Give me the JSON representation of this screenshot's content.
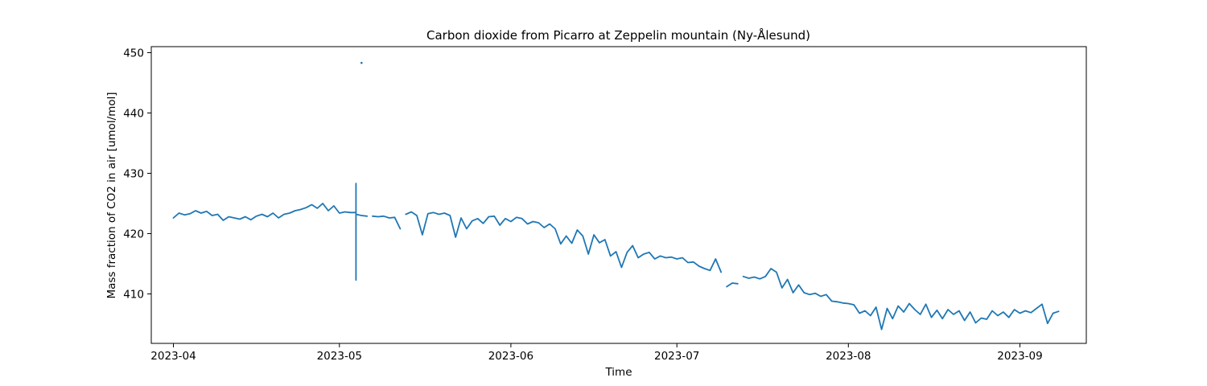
{
  "chart_data": {
    "type": "line",
    "title": "Carbon dioxide from Picarro at Zeppelin mountain (Ny-Ålesund)",
    "xlabel": "Time",
    "ylabel": "Mass fraction of CO2 in air [umol/mol]",
    "xlim": [
      "2023-03-28",
      "2023-09-13"
    ],
    "ylim": [
      401.8,
      451.0
    ],
    "xticks": [
      "2023-04-01",
      "2023-05-01",
      "2023-06-01",
      "2023-07-01",
      "2023-08-01",
      "2023-09-01"
    ],
    "xtick_labels": [
      "2023-04",
      "2023-05",
      "2023-06",
      "2023-07",
      "2023-08",
      "2023-09"
    ],
    "yticks": [
      410,
      420,
      430,
      440,
      450
    ],
    "ytick_labels": [
      "410",
      "420",
      "430",
      "440",
      "450"
    ],
    "grid": false,
    "legend": "none",
    "color": "#1f77b4",
    "series": [
      {
        "segments": [
          [
            [
              "2023-04-01",
              422.6
            ],
            [
              "2023-04-02",
              423.4
            ],
            [
              "2023-04-03",
              423.1
            ],
            [
              "2023-04-04",
              423.3
            ],
            [
              "2023-04-05",
              423.8
            ],
            [
              "2023-04-06",
              423.4
            ],
            [
              "2023-04-07",
              423.7
            ],
            [
              "2023-04-08",
              423.0
            ],
            [
              "2023-04-09",
              423.2
            ],
            [
              "2023-04-10",
              422.2
            ],
            [
              "2023-04-11",
              422.8
            ],
            [
              "2023-04-12",
              422.6
            ],
            [
              "2023-04-13",
              422.4
            ],
            [
              "2023-04-14",
              422.8
            ],
            [
              "2023-04-15",
              422.3
            ],
            [
              "2023-04-16",
              422.9
            ],
            [
              "2023-04-17",
              423.2
            ],
            [
              "2023-04-18",
              422.8
            ],
            [
              "2023-04-19",
              423.4
            ],
            [
              "2023-04-20",
              422.6
            ],
            [
              "2023-04-21",
              423.2
            ],
            [
              "2023-04-22",
              423.4
            ],
            [
              "2023-04-23",
              423.8
            ],
            [
              "2023-04-24",
              424.0
            ],
            [
              "2023-04-25",
              424.3
            ],
            [
              "2023-04-26",
              424.8
            ],
            [
              "2023-04-27",
              424.2
            ],
            [
              "2023-04-28",
              425.0
            ],
            [
              "2023-04-29",
              423.8
            ],
            [
              "2023-04-30",
              424.6
            ],
            [
              "2023-05-01",
              423.4
            ],
            [
              "2023-05-02",
              423.6
            ],
            [
              "2023-05-03",
              423.5
            ],
            [
              "2023-05-04",
              423.5
            ],
            [
              "2023-05-04",
              428.3
            ],
            [
              "2023-05-04",
              412.3
            ],
            [
              "2023-05-04",
              423.2
            ],
            [
              "2023-05-05",
              423.0
            ],
            [
              "2023-05-06",
              422.9
            ]
          ],
          [
            [
              "2023-05-07",
              422.9
            ],
            [
              "2023-05-08",
              422.8
            ],
            [
              "2023-05-09",
              422.9
            ],
            [
              "2023-05-10",
              422.6
            ],
            [
              "2023-05-11",
              422.7
            ],
            [
              "2023-05-12",
              420.8
            ]
          ],
          [
            [
              "2023-05-13",
              423.2
            ],
            [
              "2023-05-14",
              423.6
            ],
            [
              "2023-05-15",
              423.0
            ],
            [
              "2023-05-16",
              419.8
            ],
            [
              "2023-05-17",
              423.3
            ],
            [
              "2023-05-18",
              423.5
            ],
            [
              "2023-05-19",
              423.2
            ],
            [
              "2023-05-20",
              423.4
            ],
            [
              "2023-05-21",
              423.0
            ],
            [
              "2023-05-22",
              419.4
            ],
            [
              "2023-05-23",
              422.6
            ],
            [
              "2023-05-24",
              420.8
            ],
            [
              "2023-05-25",
              422.1
            ],
            [
              "2023-05-26",
              422.5
            ],
            [
              "2023-05-27",
              421.7
            ],
            [
              "2023-05-28",
              422.8
            ],
            [
              "2023-05-29",
              422.9
            ],
            [
              "2023-05-30",
              421.4
            ],
            [
              "2023-05-31",
              422.5
            ],
            [
              "2023-06-01",
              422.0
            ],
            [
              "2023-06-02",
              422.7
            ],
            [
              "2023-06-03",
              422.5
            ],
            [
              "2023-06-04",
              421.6
            ],
            [
              "2023-06-05",
              422.0
            ],
            [
              "2023-06-06",
              421.8
            ],
            [
              "2023-06-07",
              421.0
            ],
            [
              "2023-06-08",
              421.6
            ],
            [
              "2023-06-09",
              420.8
            ],
            [
              "2023-06-10",
              418.3
            ],
            [
              "2023-06-11",
              419.6
            ],
            [
              "2023-06-12",
              418.4
            ],
            [
              "2023-06-13",
              420.6
            ],
            [
              "2023-06-14",
              419.6
            ],
            [
              "2023-06-15",
              416.6
            ],
            [
              "2023-06-16",
              419.8
            ],
            [
              "2023-06-17",
              418.5
            ],
            [
              "2023-06-18",
              419.0
            ],
            [
              "2023-06-19",
              416.3
            ],
            [
              "2023-06-20",
              417.0
            ],
            [
              "2023-06-21",
              414.4
            ],
            [
              "2023-06-22",
              416.9
            ],
            [
              "2023-06-23",
              418.0
            ],
            [
              "2023-06-24",
              416.0
            ],
            [
              "2023-06-25",
              416.6
            ],
            [
              "2023-06-26",
              416.9
            ],
            [
              "2023-06-27",
              415.8
            ],
            [
              "2023-06-28",
              416.3
            ],
            [
              "2023-06-29",
              416.0
            ],
            [
              "2023-06-30",
              416.1
            ],
            [
              "2023-07-01",
              415.8
            ],
            [
              "2023-07-02",
              416.0
            ],
            [
              "2023-07-03",
              415.2
            ],
            [
              "2023-07-04",
              415.3
            ],
            [
              "2023-07-05",
              414.6
            ],
            [
              "2023-07-06",
              414.2
            ],
            [
              "2023-07-07",
              413.9
            ],
            [
              "2023-07-08",
              415.8
            ],
            [
              "2023-07-09",
              413.6
            ]
          ],
          [
            [
              "2023-07-10",
              411.2
            ],
            [
              "2023-07-11",
              411.8
            ],
            [
              "2023-07-12",
              411.7
            ]
          ],
          [
            [
              "2023-07-13",
              412.9
            ],
            [
              "2023-07-14",
              412.6
            ],
            [
              "2023-07-15",
              412.8
            ],
            [
              "2023-07-16",
              412.5
            ],
            [
              "2023-07-17",
              412.9
            ],
            [
              "2023-07-18",
              414.2
            ],
            [
              "2023-07-19",
              413.6
            ],
            [
              "2023-07-20",
              411.0
            ],
            [
              "2023-07-21",
              412.4
            ],
            [
              "2023-07-22",
              410.2
            ],
            [
              "2023-07-23",
              411.5
            ],
            [
              "2023-07-24",
              410.2
            ],
            [
              "2023-07-25",
              409.9
            ],
            [
              "2023-07-26",
              410.1
            ],
            [
              "2023-07-27",
              409.6
            ],
            [
              "2023-07-28",
              409.9
            ],
            [
              "2023-07-29",
              408.8
            ],
            [
              "2023-07-30",
              408.7
            ],
            [
              "2023-07-31",
              408.5
            ],
            [
              "2023-08-01",
              408.4
            ],
            [
              "2023-08-02",
              408.2
            ],
            [
              "2023-08-03",
              406.8
            ],
            [
              "2023-08-04",
              407.2
            ],
            [
              "2023-08-05",
              406.4
            ],
            [
              "2023-08-06",
              407.8
            ],
            [
              "2023-08-07",
              404.1
            ],
            [
              "2023-08-08",
              407.6
            ],
            [
              "2023-08-09",
              405.9
            ],
            [
              "2023-08-10",
              408.0
            ],
            [
              "2023-08-11",
              407.0
            ],
            [
              "2023-08-12",
              408.4
            ],
            [
              "2023-08-13",
              407.4
            ],
            [
              "2023-08-14",
              406.6
            ],
            [
              "2023-08-15",
              408.3
            ],
            [
              "2023-08-16",
              406.1
            ],
            [
              "2023-08-17",
              407.3
            ],
            [
              "2023-08-18",
              405.9
            ],
            [
              "2023-08-19",
              407.4
            ],
            [
              "2023-08-20",
              406.6
            ],
            [
              "2023-08-21",
              407.2
            ],
            [
              "2023-08-22",
              405.6
            ],
            [
              "2023-08-23",
              407.0
            ],
            [
              "2023-08-24",
              405.2
            ],
            [
              "2023-08-25",
              406.0
            ],
            [
              "2023-08-26",
              405.8
            ],
            [
              "2023-08-27",
              407.2
            ],
            [
              "2023-08-28",
              406.4
            ],
            [
              "2023-08-29",
              407.0
            ],
            [
              "2023-08-30",
              406.1
            ],
            [
              "2023-08-31",
              407.4
            ],
            [
              "2023-09-01",
              406.8
            ],
            [
              "2023-09-02",
              407.2
            ],
            [
              "2023-09-03",
              406.9
            ],
            [
              "2023-09-04",
              407.6
            ],
            [
              "2023-09-05",
              408.3
            ],
            [
              "2023-09-06",
              405.1
            ],
            [
              "2023-09-07",
              406.8
            ],
            [
              "2023-09-08",
              407.1
            ]
          ]
        ],
        "outliers": [
          [
            "2023-05-05",
            448.3
          ]
        ]
      }
    ]
  }
}
